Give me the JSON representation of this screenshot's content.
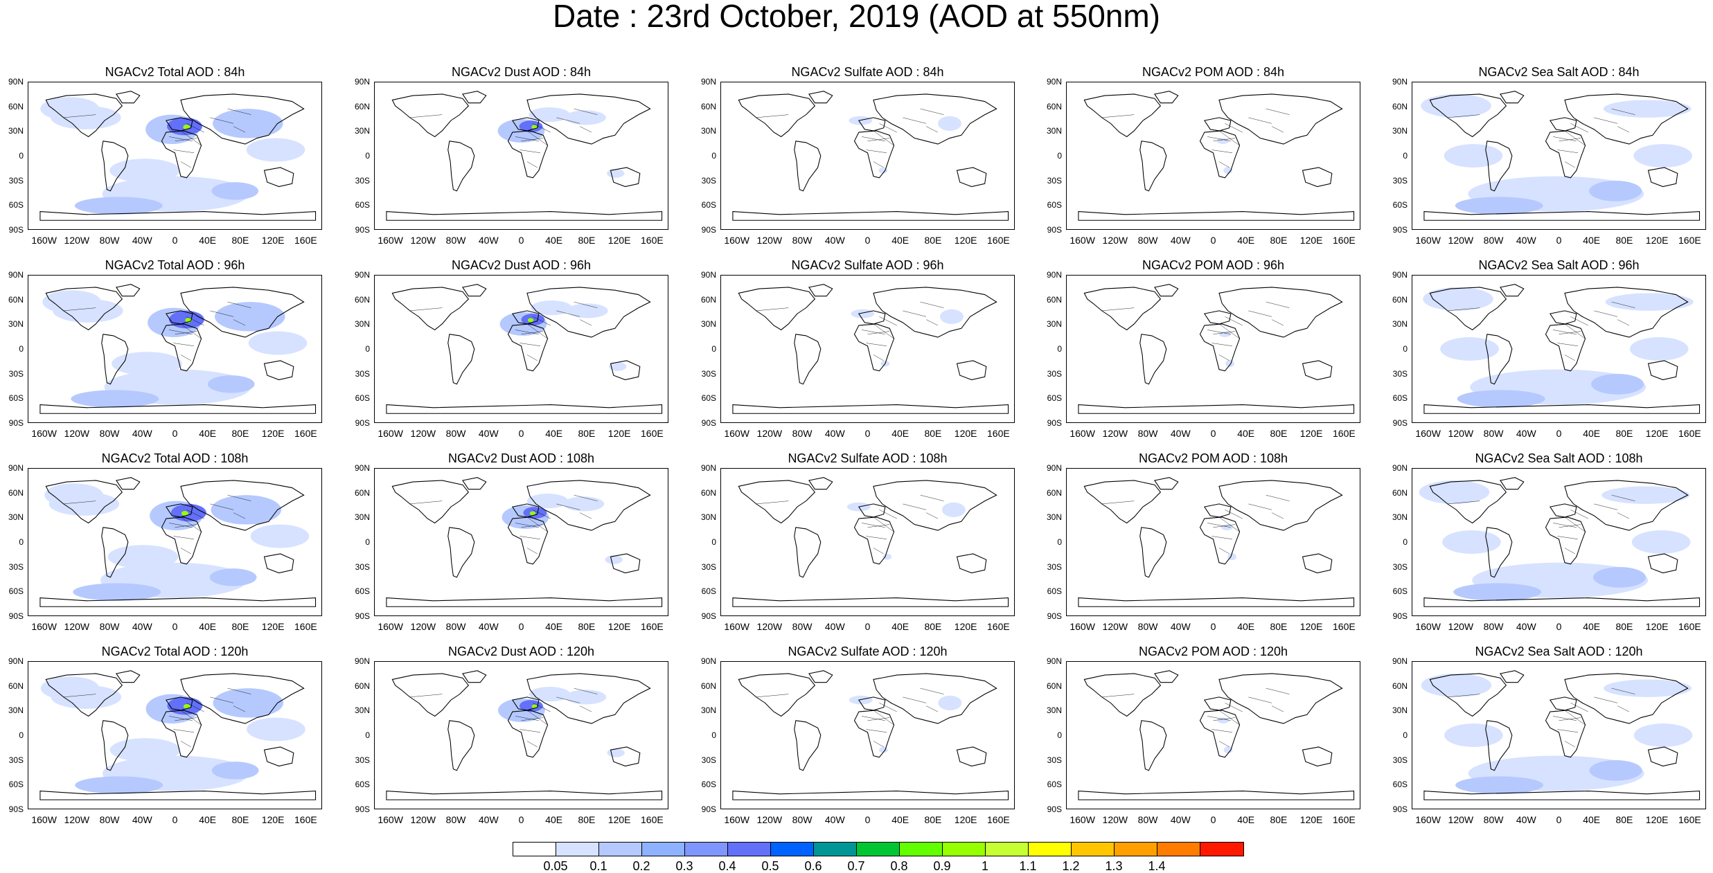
{
  "title": "Date : 23rd October, 2019 (AOD at 550nm)",
  "y_ticks": [
    "90N",
    "60N",
    "30N",
    "0",
    "30S",
    "60S",
    "90S"
  ],
  "x_ticks": [
    "160W",
    "120W",
    "80W",
    "40W",
    "0",
    "40E",
    "80E",
    "120E",
    "160E"
  ],
  "panels": [
    [
      "NGACv2 Total AOD : 84h",
      "NGACv2 Dust AOD : 84h",
      "NGACv2 Sulfate AOD : 84h",
      "NGACv2 POM AOD : 84h",
      "NGACv2 Sea Salt AOD : 84h"
    ],
    [
      "NGACv2 Total AOD : 96h",
      "NGACv2 Dust AOD : 96h",
      "NGACv2 Sulfate AOD : 96h",
      "NGACv2 POM AOD : 96h",
      "NGACv2 Sea Salt AOD : 96h"
    ],
    [
      "NGACv2 Total AOD : 108h",
      "NGACv2 Dust AOD : 108h",
      "NGACv2 Sulfate AOD : 108h",
      "NGACv2 POM AOD : 108h",
      "NGACv2 Sea Salt AOD : 108h"
    ],
    [
      "NGACv2 Total AOD : 120h",
      "NGACv2 Dust AOD : 120h",
      "NGACv2 Sulfate AOD : 120h",
      "NGACv2 POM AOD : 120h",
      "NGACv2 Sea Salt  AOD : 120h"
    ]
  ],
  "colorbar": {
    "labels": [
      "0.05",
      "0.1",
      "0.2",
      "0.3",
      "0.4",
      "0.5",
      "0.6",
      "0.7",
      "0.8",
      "0.9",
      "1",
      "1.1",
      "1.2",
      "1.3",
      "1.4"
    ],
    "colors": [
      "#ffffff",
      "#d6e2ff",
      "#b5c9ff",
      "#8eb2ff",
      "#7f96ff",
      "#6370f8",
      "#0063ff",
      "#009696",
      "#00c633",
      "#63ff00",
      "#96ff00",
      "#c6ff33",
      "#ffff00",
      "#ffc600",
      "#ffa000",
      "#ff7c00",
      "#ff1900"
    ]
  },
  "shading_colors": {
    "light": "#d6e2ff",
    "medium": "#b5c9ff",
    "strong": "#8eb2ff",
    "heavy": "#6370f8",
    "peak": "#96ff00"
  }
}
